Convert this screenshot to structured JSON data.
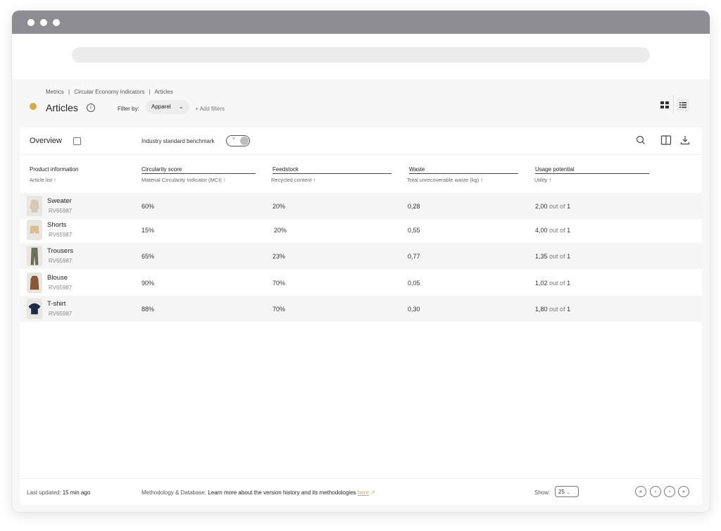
{
  "breadcrumb": [
    "Metrics",
    "|",
    "Circular Economy Indicators",
    "|",
    "Articles"
  ],
  "page": {
    "title": "Articles",
    "filter_label": "Filter by:",
    "filter_value": "Apparel",
    "add_filters": "+ Add filters"
  },
  "toolbar": {
    "overview_label": "Overview",
    "benchmark_label": "Industry standard benchmark",
    "toggle_glyph": "×"
  },
  "columns": {
    "product": {
      "title": "Product information",
      "sub": "Article list ↑"
    },
    "circularity": {
      "title": "Circularity score",
      "sub": "Material Circularity Indicator (MCI) ↑"
    },
    "feedstock": {
      "title": "Feedstock",
      "sub": "Recycled content ↑"
    },
    "waste": {
      "title": "Waste",
      "sub": "Total unrecoverable waste (kg) ↑"
    },
    "usage": {
      "title": "Usage potential",
      "sub": "Utility ↑"
    }
  },
  "rows": [
    {
      "name": "Sweater",
      "id": "RV65987",
      "mci": "60%",
      "recycled": "20%",
      "waste": "0,28",
      "utility": "2,00",
      "out_of": "out of",
      "max": "1",
      "thumb_color": "#d8c8b4"
    },
    {
      "name": "Shorts",
      "id": "RV65987",
      "mci": "15%",
      "recycled": "20%",
      "waste": "0,55",
      "utility": "4,00",
      "out_of": "out of",
      "max": "1",
      "thumb_color": "#dcc190"
    },
    {
      "name": "Trousers",
      "id": "RV65987",
      "mci": "65%",
      "recycled": "23%",
      "waste": "0,77",
      "utility": "1,35",
      "out_of": "out of",
      "max": "1",
      "thumb_color": "#6f7359"
    },
    {
      "name": "Blouse",
      "id": "RV65987",
      "mci": "90%",
      "recycled": "70%",
      "waste": "0,05",
      "utility": "1,02",
      "out_of": "out of",
      "max": "1",
      "thumb_color": "#8a5a38"
    },
    {
      "name": "T-shirt",
      "id": "RV65987",
      "mci": "88%",
      "recycled": "70%",
      "waste": "0,30",
      "utility": "1,80",
      "out_of": "out of",
      "max": "1",
      "thumb_color": "#1f2a44"
    }
  ],
  "footer": {
    "last_updated_label": "Last updated:",
    "last_updated_value": "15 min ago",
    "methodology_label": "Methodology & Database:",
    "methodology_text": "Learn more about the version history and its methodologies",
    "methodology_link": "here",
    "show_label": "Show:",
    "page_size": "25",
    "pager": [
      "«",
      "‹",
      "›",
      "»"
    ]
  },
  "colors": {
    "accent": "#d7a84a",
    "titlebar": "#8e8d94"
  }
}
